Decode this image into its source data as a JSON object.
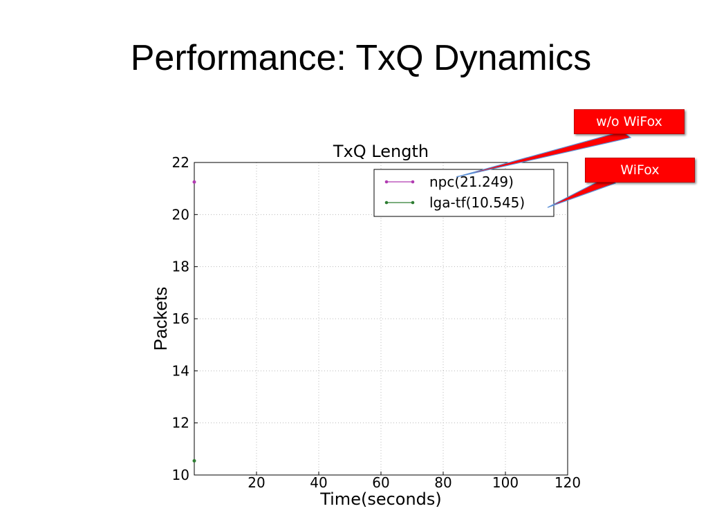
{
  "slide": {
    "title": "Performance: TxQ Dynamics"
  },
  "callouts": {
    "without_wifox": "w/o WiFox",
    "wifox": "WiFox"
  },
  "colors": {
    "npc": "#b13bb1",
    "lga_tf": "#2e7d32",
    "callout": "#ff0000"
  },
  "chart_data": {
    "type": "line",
    "title": "TxQ Length",
    "xlabel": "Time(seconds)",
    "ylabel": "Packets",
    "xlim": [
      0,
      120
    ],
    "ylim": [
      10,
      22
    ],
    "xticks": [
      20,
      40,
      60,
      80,
      100,
      120
    ],
    "yticks": [
      10,
      12,
      14,
      16,
      18,
      20,
      22
    ],
    "grid": true,
    "legend_position": "top-right",
    "series": [
      {
        "name": "npc(21.249)",
        "color": "#b13bb1",
        "points": [
          [
            0,
            21.249
          ]
        ]
      },
      {
        "name": "lga-tf(10.545)",
        "color": "#2e7d32",
        "points": [
          [
            0,
            10.545
          ]
        ]
      }
    ]
  }
}
